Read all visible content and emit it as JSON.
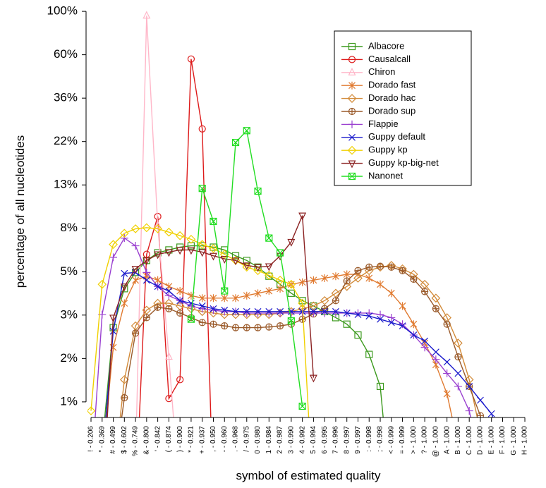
{
  "chart_data": {
    "type": "line",
    "xlabel": "symbol of estimated quality",
    "ylabel": "percentage of all nucleotides",
    "log_y": true,
    "legend": "upper right",
    "ylim": [
      0.832,
      105.2
    ],
    "yticks": [
      {
        "value": 1,
        "label": "1%"
      },
      {
        "value": 1.668,
        "label": "2%"
      },
      {
        "value": 2.783,
        "label": "3%"
      },
      {
        "value": 4.642,
        "label": "5%"
      },
      {
        "value": 7.743,
        "label": "8%"
      },
      {
        "value": 12.915,
        "label": "13%"
      },
      {
        "value": 21.544,
        "label": "22%"
      },
      {
        "value": 35.938,
        "label": "36%"
      },
      {
        "value": 59.948,
        "label": "60%"
      },
      {
        "value": 100,
        "label": "100%"
      }
    ],
    "categories": [
      "! - 0.206",
      "\" - 0.369",
      "# - 0.499",
      "$ - 0.602",
      "% - 0.749",
      "& - 0.800",
      "' - 0.842",
      "( - 0.874",
      ") - 0.900",
      "* - 0.921",
      "+ - 0.937",
      ", - 0.950",
      "- - 0.960",
      ". - 0.968",
      "/ - 0.975",
      "0 - 0.980",
      "1 - 0.984",
      "2 - 0.987",
      "3 - 0.990",
      "4 - 0.992",
      "5 - 0.994",
      "6 - 0.995",
      "7 - 0.996",
      "8 - 0.997",
      "9 - 0.997",
      ": - 0.998",
      "; - 0.998",
      "< - 0.999",
      "= - 0.999",
      "> - 1.000",
      "? - 1.000",
      "@ - 1.000",
      "A - 1.000",
      "B - 1.000",
      "C - 1.000",
      "D - 1.000",
      "E - 1.000",
      "F - 1.000",
      "G - 1.000",
      "H - 1.000"
    ],
    "series": [
      {
        "name": "Albacore",
        "color": "#3c9a1e",
        "marker": "square",
        "values": [
          null,
          0.6,
          2.4,
          3.8,
          4.6,
          5.3,
          5.8,
          6.0,
          6.2,
          6.3,
          6.3,
          6.2,
          6.0,
          5.6,
          5.3,
          4.9,
          4.4,
          4.0,
          3.6,
          3.3,
          3.1,
          2.9,
          2.7,
          2.5,
          2.2,
          1.75,
          1.2,
          0.3,
          null,
          null,
          null,
          null,
          null,
          null,
          null,
          null,
          null,
          null,
          null,
          null
        ]
      },
      {
        "name": "Causalcall",
        "color": "#dd1a1a",
        "marker": "circle",
        "values": [
          null,
          null,
          null,
          null,
          0.3,
          5.7,
          8.9,
          1.04,
          1.3,
          57,
          25,
          0.3,
          null,
          null,
          null,
          null,
          null,
          null,
          null,
          null,
          null,
          null,
          null,
          null,
          null,
          null,
          null,
          null,
          null,
          null,
          null,
          null,
          null,
          null,
          null,
          null,
          null,
          null,
          null,
          null
        ]
      },
      {
        "name": "Chiron",
        "color": "#ffb6c8",
        "marker": "triangle",
        "values": [
          null,
          null,
          null,
          null,
          0.5,
          95,
          8,
          1.7,
          0.3,
          null,
          null,
          null,
          null,
          null,
          null,
          null,
          null,
          null,
          null,
          null,
          null,
          null,
          null,
          null,
          null,
          null,
          null,
          null,
          null,
          null,
          null,
          null,
          null,
          null,
          null,
          null,
          null,
          null,
          null,
          null
        ]
      },
      {
        "name": "Dorado fast",
        "color": "#e07a30",
        "marker": "asterisk",
        "values": [
          null,
          0.5,
          1.9,
          3.2,
          4.2,
          4.4,
          4.2,
          3.9,
          3.7,
          3.5,
          3.4,
          3.4,
          3.4,
          3.4,
          3.5,
          3.6,
          3.7,
          3.8,
          4.0,
          4.1,
          4.2,
          4.3,
          4.4,
          4.5,
          4.5,
          4.3,
          4.0,
          3.6,
          3.1,
          2.5,
          2.0,
          1.55,
          1.1,
          0.6,
          null,
          null,
          null,
          null,
          null,
          null
        ]
      },
      {
        "name": "Dorado hac",
        "color": "#d28a38",
        "marker": "diamond",
        "values": [
          null,
          null,
          0.4,
          1.3,
          2.45,
          2.95,
          3.2,
          3.2,
          3.1,
          3.0,
          2.9,
          2.85,
          2.8,
          2.8,
          2.8,
          2.8,
          2.8,
          2.85,
          2.9,
          3.0,
          3.1,
          3.3,
          3.6,
          3.9,
          4.3,
          4.7,
          4.9,
          5.0,
          4.8,
          4.5,
          4.0,
          3.4,
          2.7,
          2.0,
          1.3,
          0.7,
          null,
          null,
          null,
          null
        ]
      },
      {
        "name": "Dorado sup",
        "color": "#9a5a2a",
        "marker": "circleplus",
        "values": [
          null,
          null,
          0.4,
          1.05,
          2.25,
          2.7,
          3.05,
          3.0,
          2.85,
          2.7,
          2.55,
          2.5,
          2.45,
          2.4,
          2.4,
          2.4,
          2.42,
          2.45,
          2.5,
          2.65,
          2.82,
          3.0,
          3.3,
          4.16,
          4.7,
          4.9,
          4.95,
          4.9,
          4.7,
          4.25,
          3.67,
          3.0,
          2.5,
          1.7,
          1.2,
          0.85,
          0.5,
          null,
          null,
          null
        ]
      },
      {
        "name": "Flappie",
        "color": "#9a40d0",
        "marker": "plus",
        "values": [
          0.4,
          2.8,
          5.5,
          6.9,
          6.3,
          4.6,
          3.9,
          3.5,
          3.3,
          3.1,
          3.0,
          2.95,
          2.9,
          2.9,
          2.85,
          2.85,
          2.85,
          2.85,
          2.85,
          2.85,
          2.85,
          2.85,
          2.85,
          2.85,
          2.85,
          2.85,
          2.8,
          2.7,
          2.5,
          2.2,
          1.9,
          1.65,
          1.4,
          1.2,
          0.9,
          0.5,
          null,
          null,
          null,
          null
        ]
      },
      {
        "name": "Guppy default",
        "color": "#1a1acc",
        "marker": "cross",
        "values": [
          null,
          0.5,
          2.3,
          4.55,
          4.6,
          4.2,
          3.9,
          3.7,
          3.3,
          3.2,
          3.1,
          3.0,
          2.95,
          2.9,
          2.9,
          2.9,
          2.9,
          2.9,
          2.9,
          2.9,
          2.9,
          2.9,
          2.9,
          2.85,
          2.8,
          2.75,
          2.65,
          2.55,
          2.45,
          2.2,
          2.05,
          1.8,
          1.6,
          1.4,
          1.2,
          1.02,
          0.87,
          0.6,
          null,
          null
        ]
      },
      {
        "name": "Guppy kp",
        "color": "#f0d000",
        "marker": "diamond",
        "values": [
          0.9,
          4.0,
          6.4,
          7.3,
          7.7,
          7.8,
          7.7,
          7.4,
          7.1,
          6.8,
          6.4,
          6.1,
          5.7,
          5.3,
          4.9,
          4.7,
          4.45,
          4.2,
          4.0,
          3.2,
          0.3,
          null,
          null,
          null,
          null,
          null,
          null,
          null,
          null,
          null,
          null,
          null,
          null,
          null,
          null,
          null,
          null,
          null,
          null,
          null
        ]
      },
      {
        "name": "Guppy kp-big-net",
        "color": "#8b2222",
        "marker": "triangledown",
        "values": [
          null,
          0.3,
          2.7,
          3.9,
          4.8,
          5.3,
          5.7,
          5.85,
          6.0,
          6.0,
          5.85,
          5.6,
          5.4,
          5.3,
          5.0,
          4.9,
          4.95,
          5.6,
          6.6,
          9.0,
          1.33,
          null,
          null,
          null,
          null,
          null,
          null,
          null,
          null,
          null,
          null,
          null,
          null,
          null,
          null,
          null,
          null,
          null,
          null,
          null
        ]
      },
      {
        "name": "Nanonet",
        "color": "#22dd22",
        "marker": "boxx",
        "values": [
          null,
          null,
          null,
          null,
          null,
          null,
          null,
          null,
          null,
          2.65,
          12.4,
          8.4,
          3.7,
          21.3,
          24.5,
          12.0,
          6.9,
          5.8,
          2.6,
          0.95,
          null,
          null,
          null,
          null,
          null,
          null,
          null,
          null,
          null,
          null,
          null,
          null,
          null,
          null,
          null,
          null,
          null,
          null,
          null,
          null
        ]
      }
    ]
  }
}
